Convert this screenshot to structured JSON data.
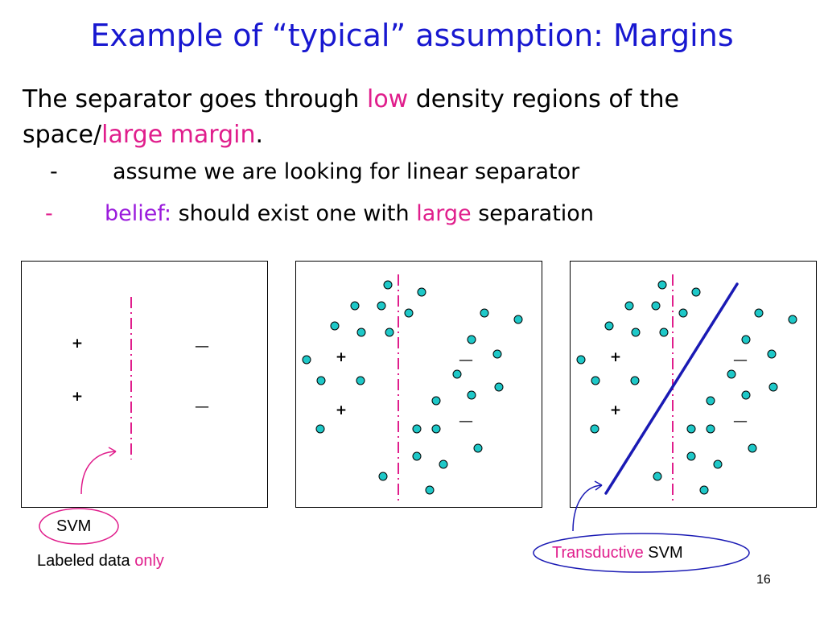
{
  "slide": {
    "title": "Example of “typical” assumption: Margins",
    "line1_before": "The separator goes through ",
    "line1_highlight": "low",
    "line1_after": " density regions of the",
    "line2_before": "space/",
    "line2_highlight": "large margin",
    "line2_after": ".",
    "bullets": [
      {
        "dash": "-",
        "text": "assume we are looking for linear separator"
      },
      {
        "dash": "-",
        "label": "belief:",
        "before": " should exist one with ",
        "highlight": "large",
        "after": " separation"
      }
    ],
    "page_number": "16"
  },
  "symbols": {
    "plus": "+",
    "minus": "—"
  },
  "callouts": {
    "svm": {
      "label": "SVM",
      "caption_before": "Labeled data ",
      "caption_highlight": "only"
    },
    "transductive": {
      "highlight": "Transductive",
      "after": " SVM"
    }
  },
  "colors": {
    "title": "#1818d0",
    "highlight": "#e01e8c",
    "belief": "#9a1adc",
    "point_fill": "#1ec8c8",
    "point_stroke": "#000000",
    "separator": "#e01e8c",
    "transductive_line": "#1a1ab4",
    "arrow": "#1a1ab4",
    "arrow_svm": "#e01e8c"
  }
}
